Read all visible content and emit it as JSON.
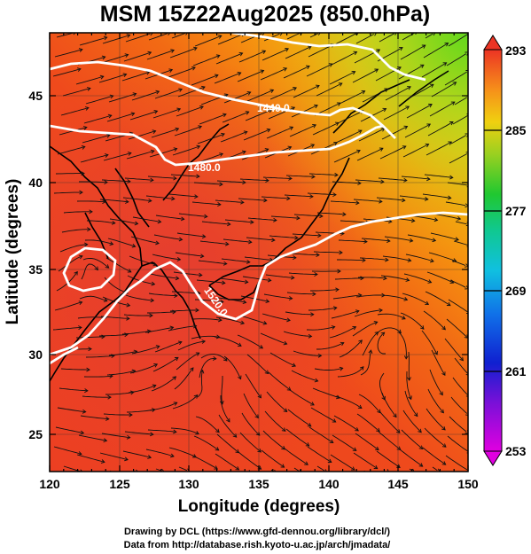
{
  "title": "MSM 15Z22Aug2025 (850.0hPa)",
  "map": {
    "xlabel": "Longitude (degrees)",
    "ylabel": "Latitude  (degrees)",
    "xlim": [
      120,
      150
    ],
    "ylim": [
      22.4,
      47.6
    ],
    "xticks": [
      "120",
      "125",
      "130",
      "135",
      "140",
      "145",
      "150"
    ],
    "yticks": [
      "25",
      "30",
      "35",
      "40",
      "45"
    ],
    "contour_labels": [
      "1440.0",
      "1480.0",
      "1520.0"
    ]
  },
  "colorbar": {
    "ticks": [
      "293",
      "285",
      "277",
      "269",
      "261",
      "253"
    ],
    "range": [
      253,
      293
    ]
  },
  "credits": {
    "line1": "Drawing by DCL (https://www.gfd-dennou.org/library/dcl/)",
    "line2": "Data from http://database.rish.kyoto-u.ac.jp/arch/jmadata/"
  }
}
